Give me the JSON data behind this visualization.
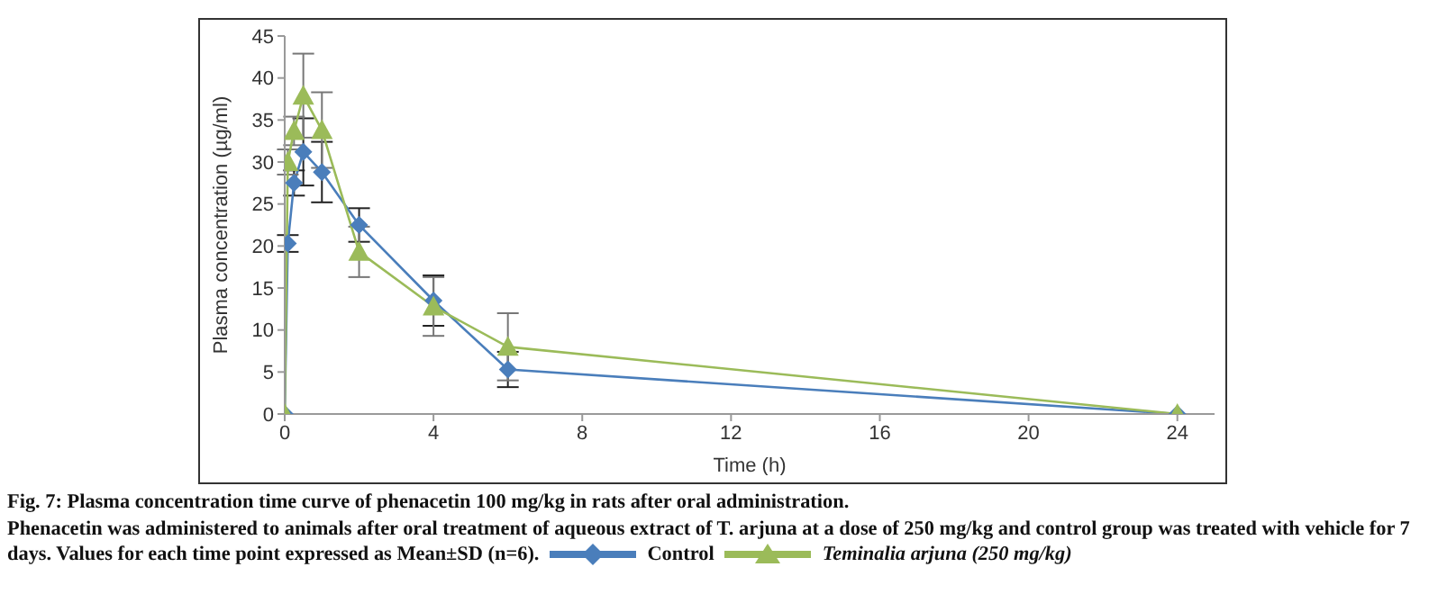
{
  "chart_data": {
    "type": "line",
    "title": "Fig. 7: Plasma concentration time curve of phenacetin 100 mg/kg in rats after oral administration.",
    "annotations": [
      "Phenacetin was administered to animals after oral treatment of aqueous extract of T. arjuna at a dose of 250 mg/kg and control group was treated with vehicle for 7 days. Values for each time point expressed as Mean±SD (n=6)."
    ],
    "xlabel": "Time (h)",
    "ylabel": "Plasma concentration (µg/ml)",
    "x": [
      0,
      0.083,
      0.25,
      0.5,
      1,
      2,
      4,
      6,
      24
    ],
    "series": [
      {
        "name": "Control",
        "color": "#4a7ebb",
        "marker": "diamond",
        "values": [
          0,
          20.3,
          27.5,
          31.2,
          28.8,
          22.5,
          13.5,
          5.3,
          0
        ],
        "errors": [
          null,
          1,
          1.5,
          4,
          3.6,
          2,
          3,
          2.1,
          null
        ]
      },
      {
        "name": "Teminalia arjuna (250 mg/kg)",
        "color": "#9bbb59",
        "marker": "triangle",
        "values": [
          0,
          30,
          33.7,
          37.9,
          33.8,
          19.3,
          12.8,
          8,
          0
        ],
        "errors": [
          null,
          1.5,
          1.7,
          5,
          4.5,
          3,
          3.5,
          4,
          null
        ]
      }
    ],
    "xlim": [
      0,
      25
    ],
    "xticks": [
      0,
      4,
      8,
      12,
      16,
      20,
      24
    ],
    "ylim": [
      0,
      45
    ],
    "yticks": [
      0,
      5,
      10,
      15,
      20,
      25,
      30,
      35,
      40,
      45
    ],
    "grid": false,
    "legend": "bottom",
    "line_style": "solid"
  }
}
